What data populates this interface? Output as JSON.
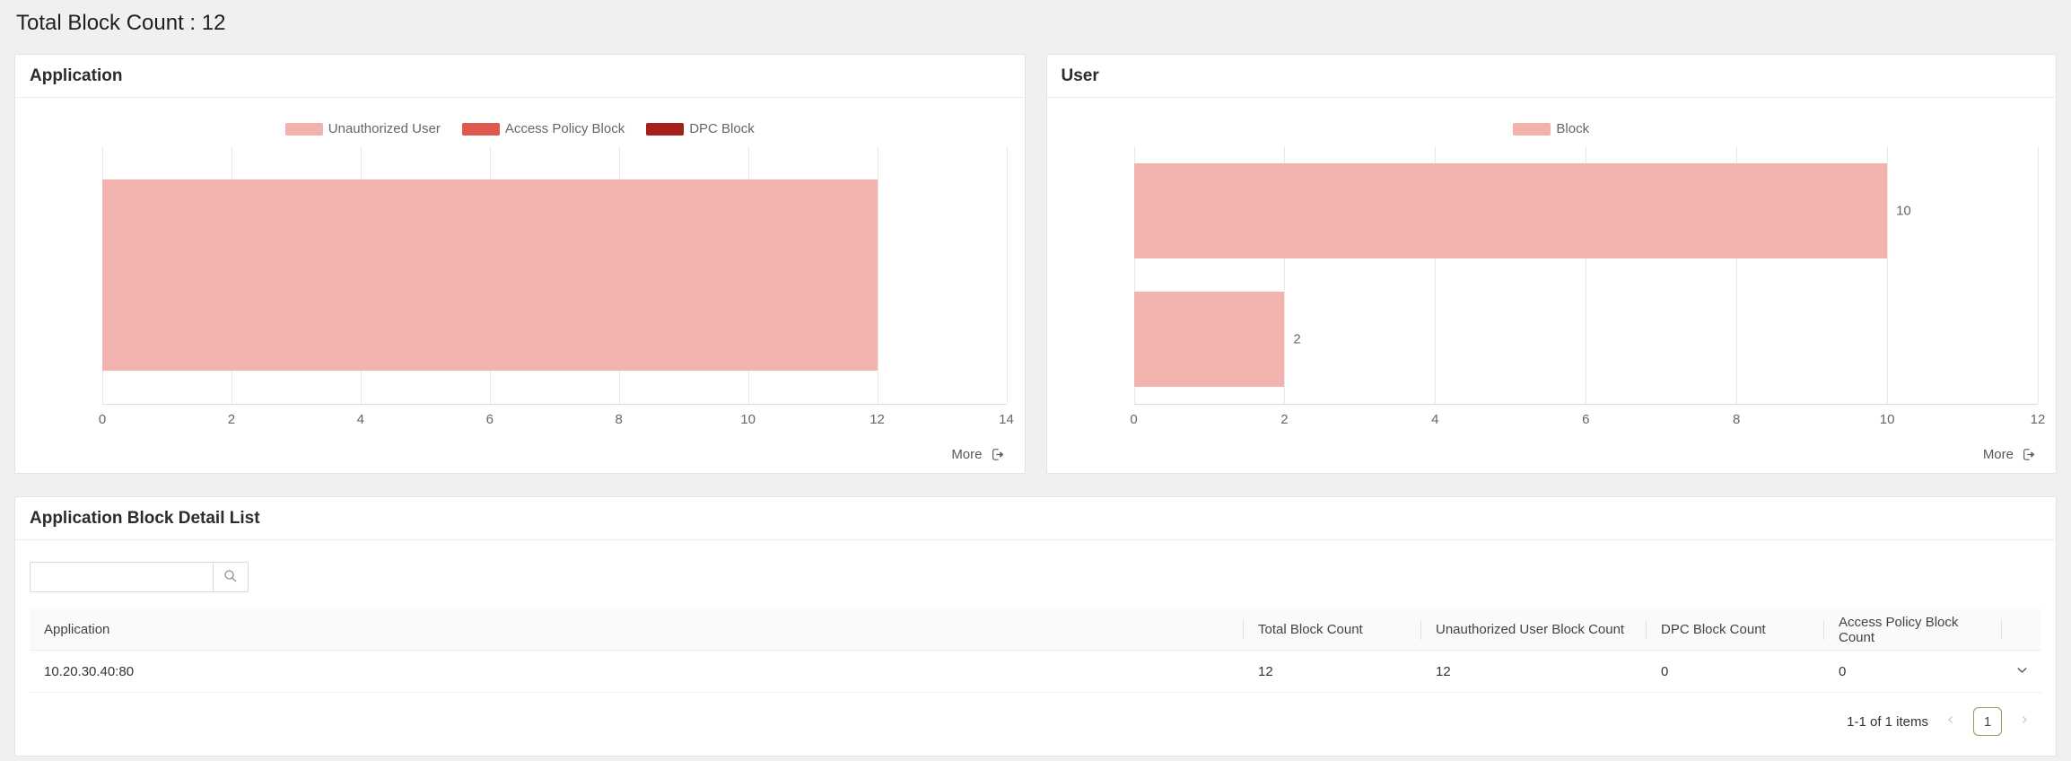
{
  "page": {
    "title": "Total Block Count : 12"
  },
  "panels": {
    "application": {
      "title": "Application",
      "more_label": "More"
    },
    "user": {
      "title": "User",
      "more_label": "More"
    },
    "detail": {
      "title": "Application Block Detail List"
    }
  },
  "chart_data": [
    {
      "id": "application",
      "type": "bar",
      "orientation": "horizontal",
      "stacked": true,
      "categories": [
        ""
      ],
      "series": [
        {
          "name": "Unauthorized User",
          "color": "#f2b2ae",
          "values": [
            12
          ]
        },
        {
          "name": "Access Policy Block",
          "color": "#df584d",
          "values": [
            0
          ]
        },
        {
          "name": "DPC Block",
          "color": "#a3201c",
          "values": [
            0
          ]
        }
      ],
      "data_labels": [],
      "xlim": [
        0,
        14
      ],
      "xticks": [
        "0",
        "2",
        "4",
        "6",
        "8",
        "10",
        "12",
        "14"
      ],
      "grid": true,
      "legend_position": "top-center"
    },
    {
      "id": "user",
      "type": "bar",
      "orientation": "horizontal",
      "stacked": false,
      "categories": [
        "",
        ""
      ],
      "series": [
        {
          "name": "Block",
          "color": "#f2b2ae",
          "values": [
            10,
            2
          ]
        }
      ],
      "data_labels": [
        "10",
        "2"
      ],
      "xlim": [
        0,
        12
      ],
      "xticks": [
        "0",
        "2",
        "4",
        "6",
        "8",
        "10",
        "12"
      ],
      "grid": true,
      "legend_position": "top-center"
    }
  ],
  "search": {
    "value": "",
    "placeholder": ""
  },
  "table": {
    "columns": [
      "Application",
      "Total Block Count",
      "Unauthorized User Block Count",
      "DPC Block Count",
      "Access Policy Block Count"
    ],
    "rows": [
      [
        "10.20.30.40:80",
        "12",
        "12",
        "0",
        "0"
      ]
    ],
    "pagination": {
      "summary": "1-1 of 1 items",
      "current_page": "1"
    }
  },
  "icons": {
    "more": "export-arrow",
    "search": "magnifier",
    "row_expand": "chevron-down",
    "pagination_prev": "chevron-left",
    "pagination_next": "chevron-right"
  },
  "colors": {
    "unauthorized_user": "#f2b2ae",
    "access_policy_block": "#df584d",
    "dpc_block": "#a3201c",
    "block": "#f2b2ae",
    "grid_line": "#e8e8e8",
    "axis_text": "#666666",
    "pagination_active_border": "#7ca65c",
    "page_background": "#f0f0f0"
  }
}
